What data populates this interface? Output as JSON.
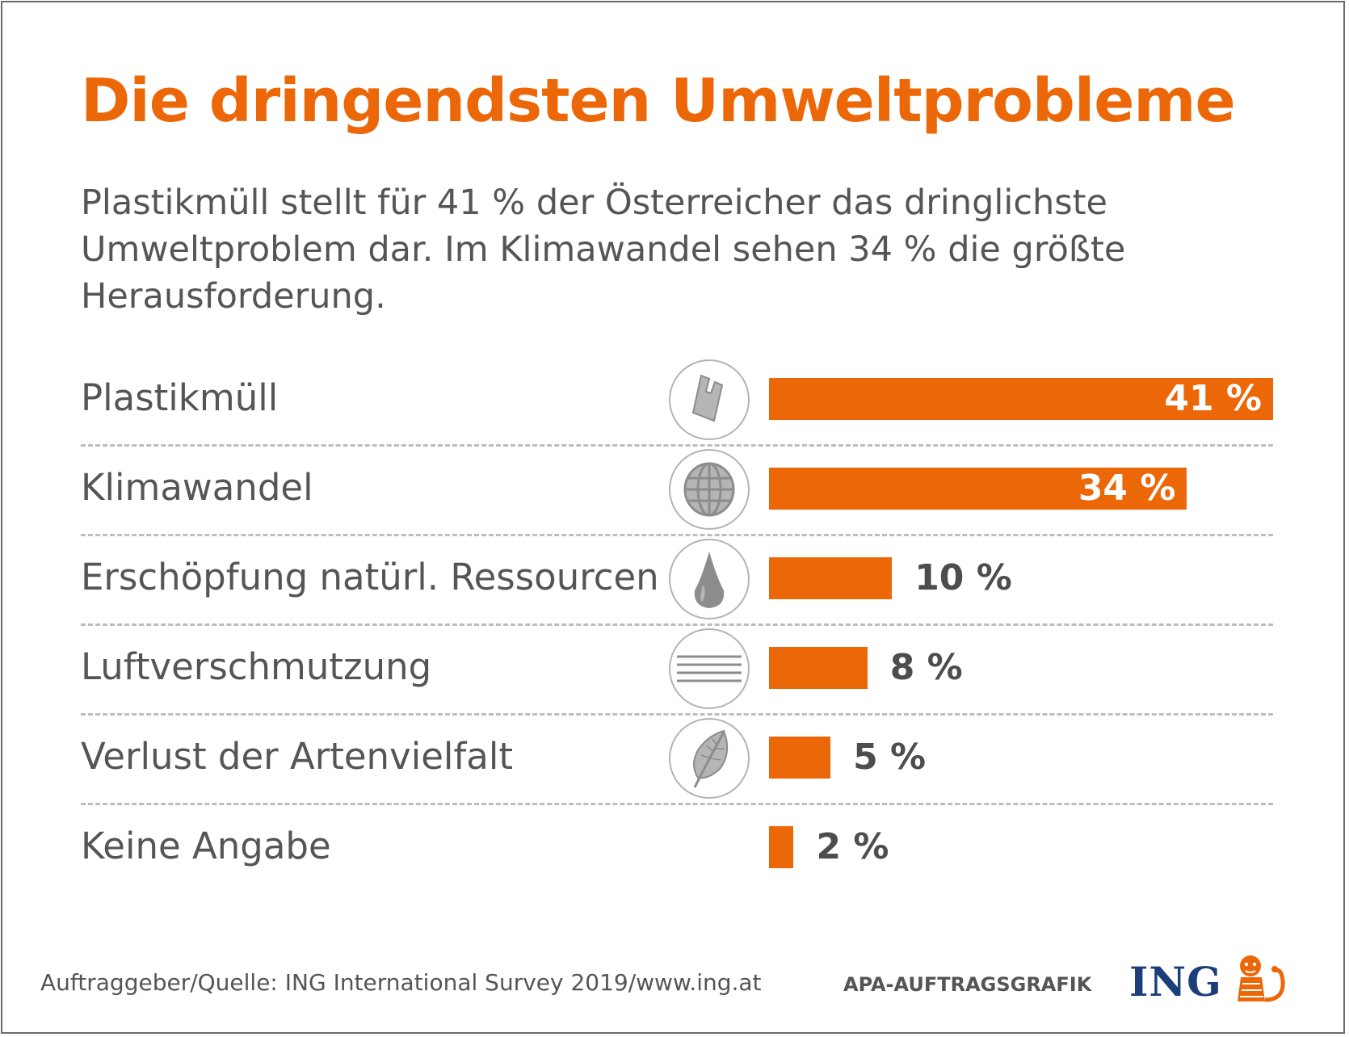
{
  "header": {
    "title": "Die dringendsten Umweltprobleme",
    "subtitle": "Plastikmüll stellt für 41 % der Österreicher das dringlichste Umweltproblem dar. Im Klimawandel sehen 34 % die größte Herausforderung."
  },
  "colors": {
    "accent": "#ec6707",
    "text": "#555555",
    "brand_blue": "#1c3f7b",
    "icon_gray": "#8c8c8c"
  },
  "chart_data": {
    "type": "bar",
    "orientation": "horizontal",
    "title": "Die dringendsten Umweltprobleme",
    "categories": [
      "Plastikmüll",
      "Klimawandel",
      "Erschöpfung natürl. Ressourcen",
      "Luftverschmutzung",
      "Verlust der Artenvielfalt",
      "Keine Angabe"
    ],
    "values": [
      41,
      34,
      10,
      8,
      5,
      2
    ],
    "value_labels": [
      "41 %",
      "34 %",
      "10 %",
      "8 %",
      "5 %",
      "2 %"
    ],
    "icons": [
      "plastic-bag-icon",
      "globe-icon",
      "water-drop-icon",
      "air-lines-icon",
      "leaf-icon",
      ""
    ],
    "unit": "%",
    "xlim": [
      0,
      41
    ],
    "grid": false,
    "xlabel": "",
    "ylabel": ""
  },
  "footer": {
    "source": "Auftraggeber/Quelle: ING International Survey 2019/www.ing.at",
    "credit": "APA-AUFTRAGSGRAFIK",
    "brand": "ING"
  }
}
